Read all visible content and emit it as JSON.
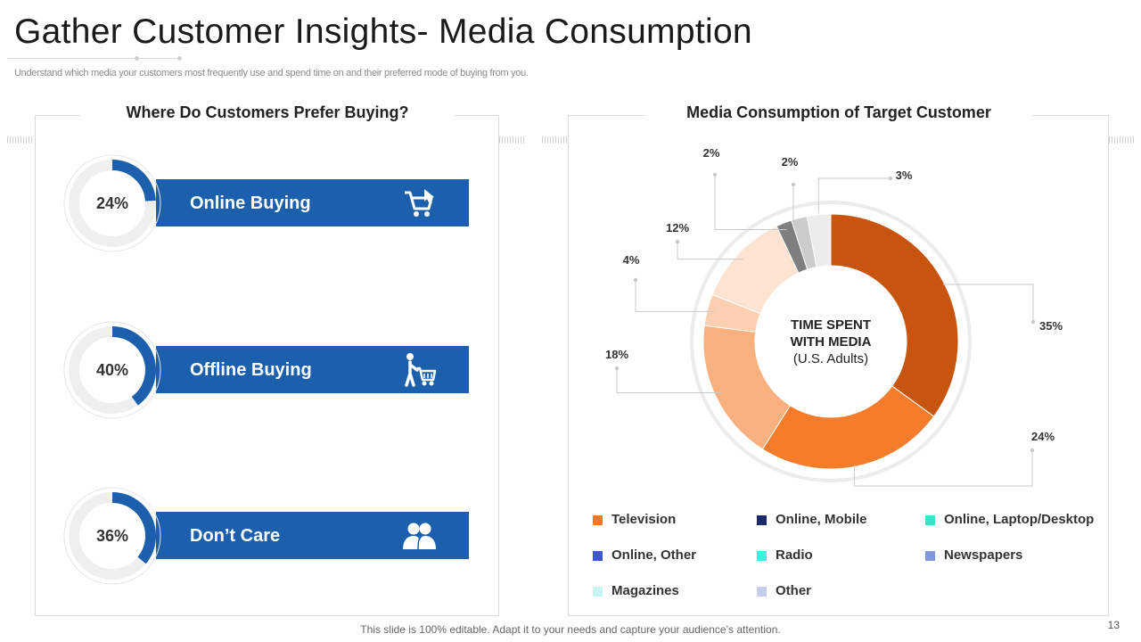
{
  "page": {
    "title": "Gather Customer Insights- Media Consumption",
    "subtitle": "Understand which media your customers most frequently use and spend time on and their preferred mode of buying from you.",
    "footer": "This slide is 100% editable. Adapt it to your needs and capture your audience’s attention.",
    "page_number": "13"
  },
  "colors": {
    "band": "#1c5fac",
    "ring_track": "#efefef",
    "ring_fill": "#1c5fac"
  },
  "left_panel": {
    "heading": "Where Do Customers Prefer Buying?",
    "items": [
      {
        "percent_label": "24%",
        "value": 24,
        "label": "Online Buying",
        "icon": "shopping-cart-icon"
      },
      {
        "percent_label": "40%",
        "value": 40,
        "label": "Offline Buying",
        "icon": "person-with-cart-icon"
      },
      {
        "percent_label": "36%",
        "value": 36,
        "label": "Don’t Care",
        "icon": "users-icon"
      }
    ]
  },
  "right_panel": {
    "heading": "Media Consumption of Target Customer"
  },
  "chart_data": {
    "type": "pie",
    "title": "Media Consumption of Target Customer",
    "center_text": [
      "TIME SPENT",
      "WITH MEDIA",
      "(U.S. Adults)"
    ],
    "slices": [
      {
        "label": "35%",
        "value": 35,
        "color": "#c7550f"
      },
      {
        "label": "24%",
        "value": 24,
        "color": "#f47c2a"
      },
      {
        "label": "18%",
        "value": 18,
        "color": "#f8b17e"
      },
      {
        "label": "4%",
        "value": 4,
        "color": "#fbcfb0"
      },
      {
        "label": "12%",
        "value": 12,
        "color": "#fde3d2"
      },
      {
        "label": "2%",
        "value": 2,
        "color": "#7f7f7f"
      },
      {
        "label": "2%",
        "value": 2,
        "color": "#cccccc"
      },
      {
        "label": "3%",
        "value": 3,
        "color": "#ececec"
      }
    ],
    "legend": [
      {
        "label": "Television",
        "color": "#f07a2a"
      },
      {
        "label": "Online, Mobile",
        "color": "#1a2a6c"
      },
      {
        "label": "Online, Laptop/Desktop",
        "color": "#3ee0c8"
      },
      {
        "label": "Online, Other",
        "color": "#3c58c8"
      },
      {
        "label": "Radio",
        "color": "#3ef0e0"
      },
      {
        "label": "Newspapers",
        "color": "#7f98dc"
      },
      {
        "label": "Magazines",
        "color": "#c6f6f4"
      },
      {
        "label": "Other",
        "color": "#c6cdec"
      }
    ]
  }
}
